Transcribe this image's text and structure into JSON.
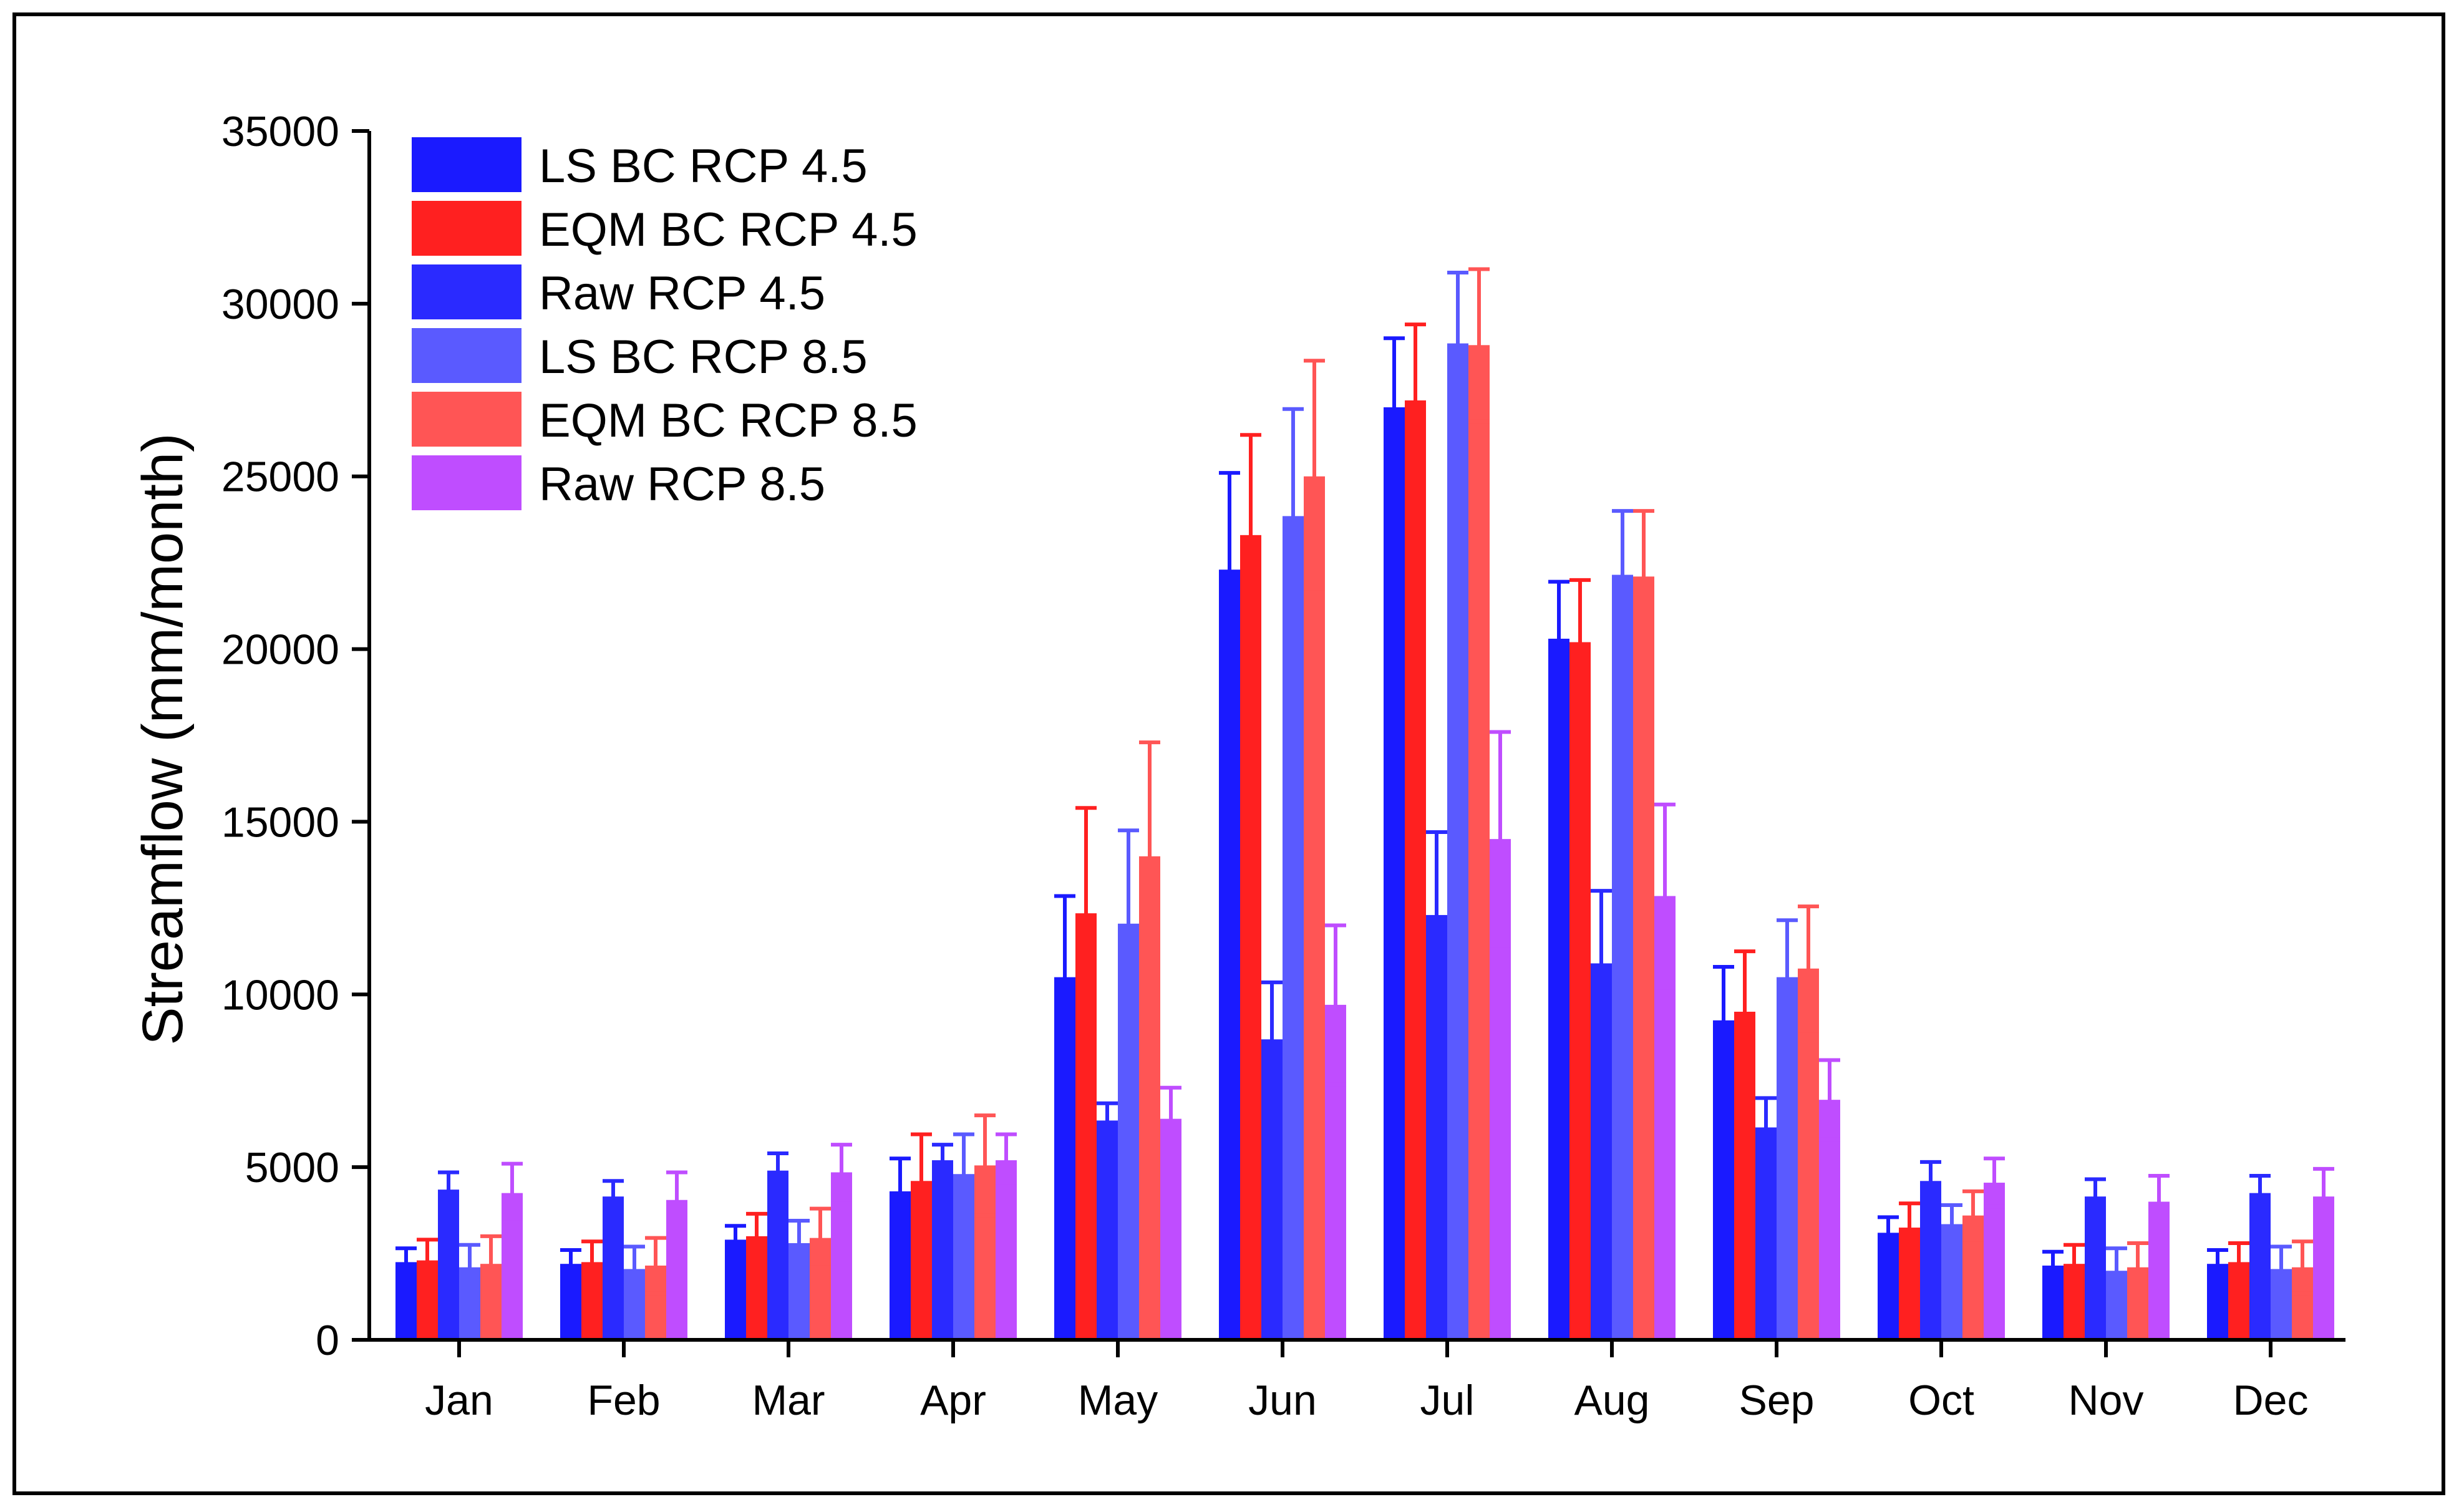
{
  "chart_data": {
    "type": "bar",
    "title": "",
    "xlabel": "",
    "ylabel": "Streamflow (mm/month)",
    "ylim": [
      0,
      35000
    ],
    "yticks": [
      0,
      5000,
      10000,
      15000,
      20000,
      25000,
      30000,
      35000
    ],
    "ytick_labels": [
      "0",
      "5000",
      "10000",
      "15000",
      "20000",
      "25000",
      "30000",
      "35000"
    ],
    "categories": [
      "Jan",
      "Feb",
      "Mar",
      "Apr",
      "May",
      "Jun",
      "Jul",
      "Aug",
      "Sep",
      "Oct",
      "Nov",
      "Dec"
    ],
    "legend_position": "top-left",
    "series": [
      {
        "name": "LS BC  RCP 4.5",
        "color": "#1a1aff",
        "values": [
          2250,
          2200,
          2900,
          4300,
          10500,
          22300,
          27000,
          20300,
          9250,
          3100,
          2150,
          2200
        ],
        "errors": [
          400,
          400,
          400,
          950,
          2350,
          2800,
          2000,
          1650,
          1550,
          450,
          400,
          400
        ]
      },
      {
        "name": "EQM BC  RCP 4.5",
        "color": "#ff2020",
        "values": [
          2300,
          2250,
          3000,
          4600,
          12350,
          23300,
          27200,
          20200,
          9500,
          3250,
          2200,
          2250
        ],
        "errors": [
          600,
          600,
          650,
          1350,
          3050,
          2900,
          2200,
          1800,
          1750,
          700,
          550,
          550
        ]
      },
      {
        "name": "Raw  RCP 4.5",
        "color": "#2a2aff",
        "values": [
          4350,
          4150,
          4900,
          5200,
          6350,
          8700,
          12300,
          10900,
          6150,
          4600,
          4150,
          4250
        ],
        "errors": [
          500,
          450,
          500,
          450,
          500,
          1650,
          2400,
          2100,
          850,
          550,
          500,
          500
        ]
      },
      {
        "name": "LS BC  RCP 8.5",
        "color": "#5a5aff",
        "values": [
          2100,
          2050,
          2800,
          4800,
          12050,
          23850,
          28850,
          22150,
          10500,
          3350,
          2000,
          2050
        ],
        "errors": [
          650,
          650,
          650,
          1150,
          2700,
          3100,
          2050,
          1850,
          1650,
          550,
          650,
          650
        ]
      },
      {
        "name": "EQM BC  RCP 8.5",
        "color": "#ff5555",
        "values": [
          2200,
          2150,
          2950,
          5050,
          14000,
          25000,
          28800,
          22100,
          10750,
          3600,
          2100,
          2100
        ],
        "errors": [
          800,
          800,
          850,
          1450,
          3300,
          3350,
          2200,
          1900,
          1800,
          700,
          700,
          750
        ]
      },
      {
        "name": "Raw  RCP 8.5",
        "color": "#bf4dff",
        "values": [
          4250,
          4050,
          4850,
          5200,
          6400,
          9700,
          14500,
          12850,
          6950,
          4550,
          4000,
          4150
        ],
        "errors": [
          850,
          800,
          800,
          750,
          900,
          2300,
          3100,
          2650,
          1150,
          700,
          750,
          800
        ]
      }
    ]
  }
}
